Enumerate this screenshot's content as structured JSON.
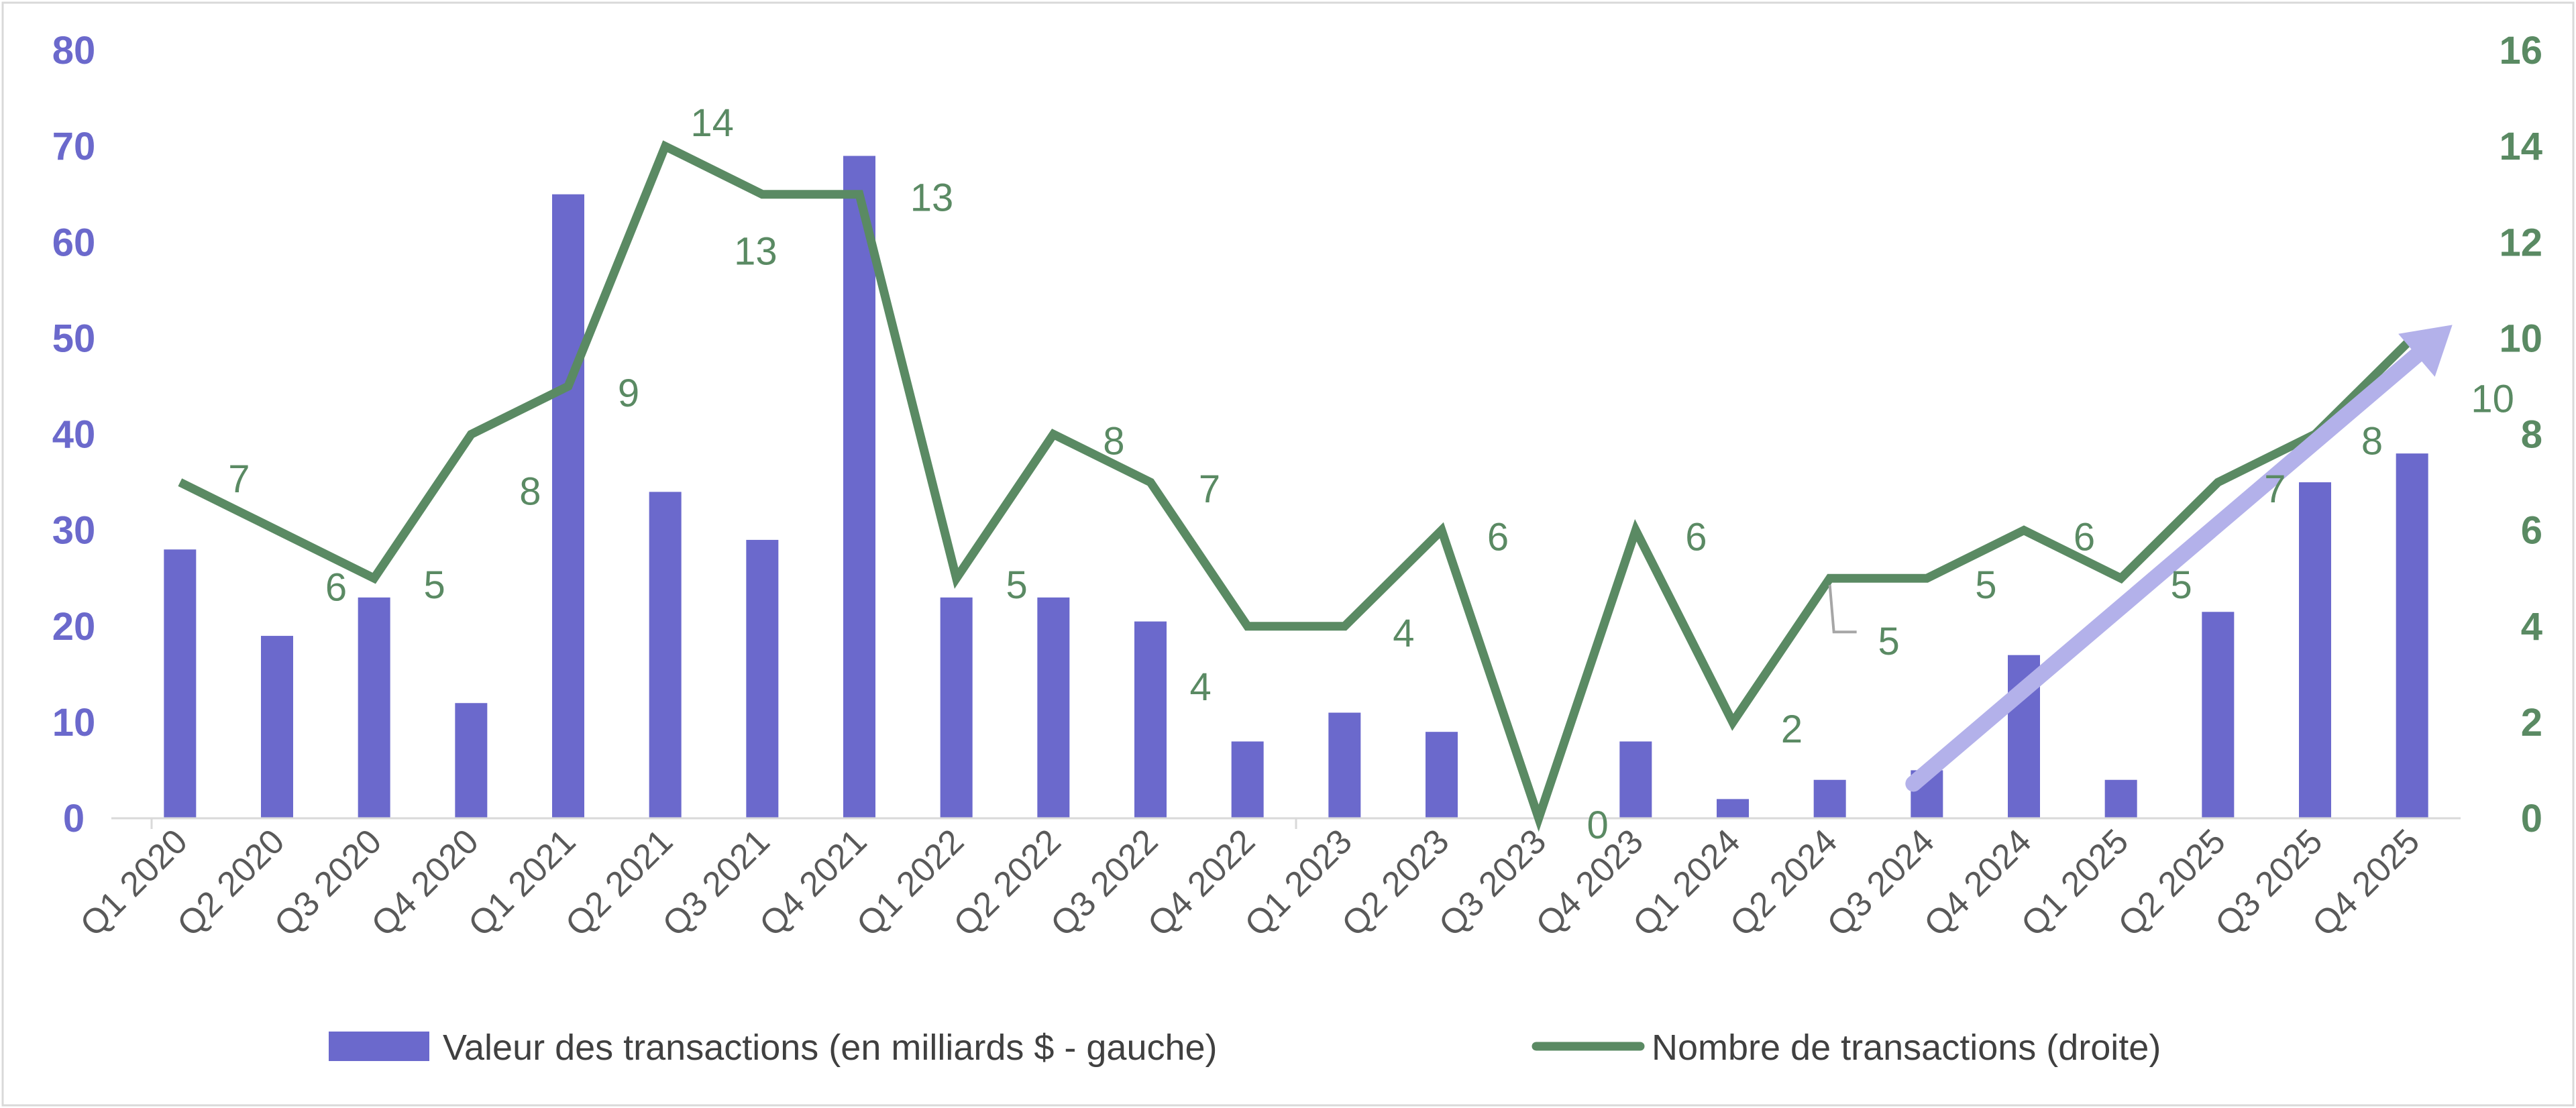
{
  "chart_data": {
    "type": "bar",
    "categories": [
      "Q1 2020",
      "Q2 2020",
      "Q3 2020",
      "Q4 2020",
      "Q1 2021",
      "Q2 2021",
      "Q3 2021",
      "Q4 2021",
      "Q1 2022",
      "Q2 2022",
      "Q3 2022",
      "Q4 2022",
      "Q1 2023",
      "Q2 2023",
      "Q3 2023",
      "Q4 2023",
      "Q1 2024",
      "Q2 2024",
      "Q3 2024",
      "Q4 2024",
      "Q1 2025",
      "Q2 2025",
      "Q3 2025",
      "Q4 2025"
    ],
    "series": [
      {
        "name": "Valeur des transactions (en milliards $ - gauche)",
        "type": "bar",
        "axis": "left",
        "color": "#6b69cc",
        "values": [
          28,
          19,
          23,
          12,
          65,
          34,
          29,
          69,
          23,
          23,
          20.5,
          8,
          11,
          9,
          0,
          8,
          2,
          4,
          5,
          17,
          4,
          21.5,
          35,
          38
        ]
      },
      {
        "name": "Nombre de transactions (droite)",
        "type": "line",
        "axis": "right",
        "color": "#5a8a63",
        "values": [
          7,
          6,
          5,
          8,
          9,
          14,
          13,
          13,
          5,
          8,
          7,
          4,
          4,
          6,
          0,
          6,
          2,
          5,
          5,
          6,
          5,
          7,
          8,
          10
        ],
        "data_labels": [
          "7",
          "6",
          "5",
          "8",
          "9",
          "14",
          "13",
          "13",
          "5",
          "8",
          "7",
          "4",
          "4",
          "6",
          "0",
          "6",
          "2",
          "5",
          "5",
          "6",
          "5",
          "7",
          "8",
          "10"
        ]
      }
    ],
    "left_axis": {
      "ylim": [
        0,
        80
      ],
      "ticks": [
        "0",
        "10",
        "20",
        "30",
        "40",
        "50",
        "60",
        "70",
        "80"
      ],
      "color": "#6b69cc"
    },
    "right_axis": {
      "ylim": [
        0,
        16
      ],
      "ticks": [
        "0",
        "2",
        "4",
        "6",
        "8",
        "10",
        "12",
        "14",
        "16"
      ],
      "color": "#5a8a63"
    },
    "trend_arrow": {
      "from": [
        "Q3 2024",
        1
      ],
      "to": [
        "Q4 2025",
        10
      ],
      "color": "#b3b1ea"
    },
    "grid": false,
    "legend_position": "bottom"
  }
}
